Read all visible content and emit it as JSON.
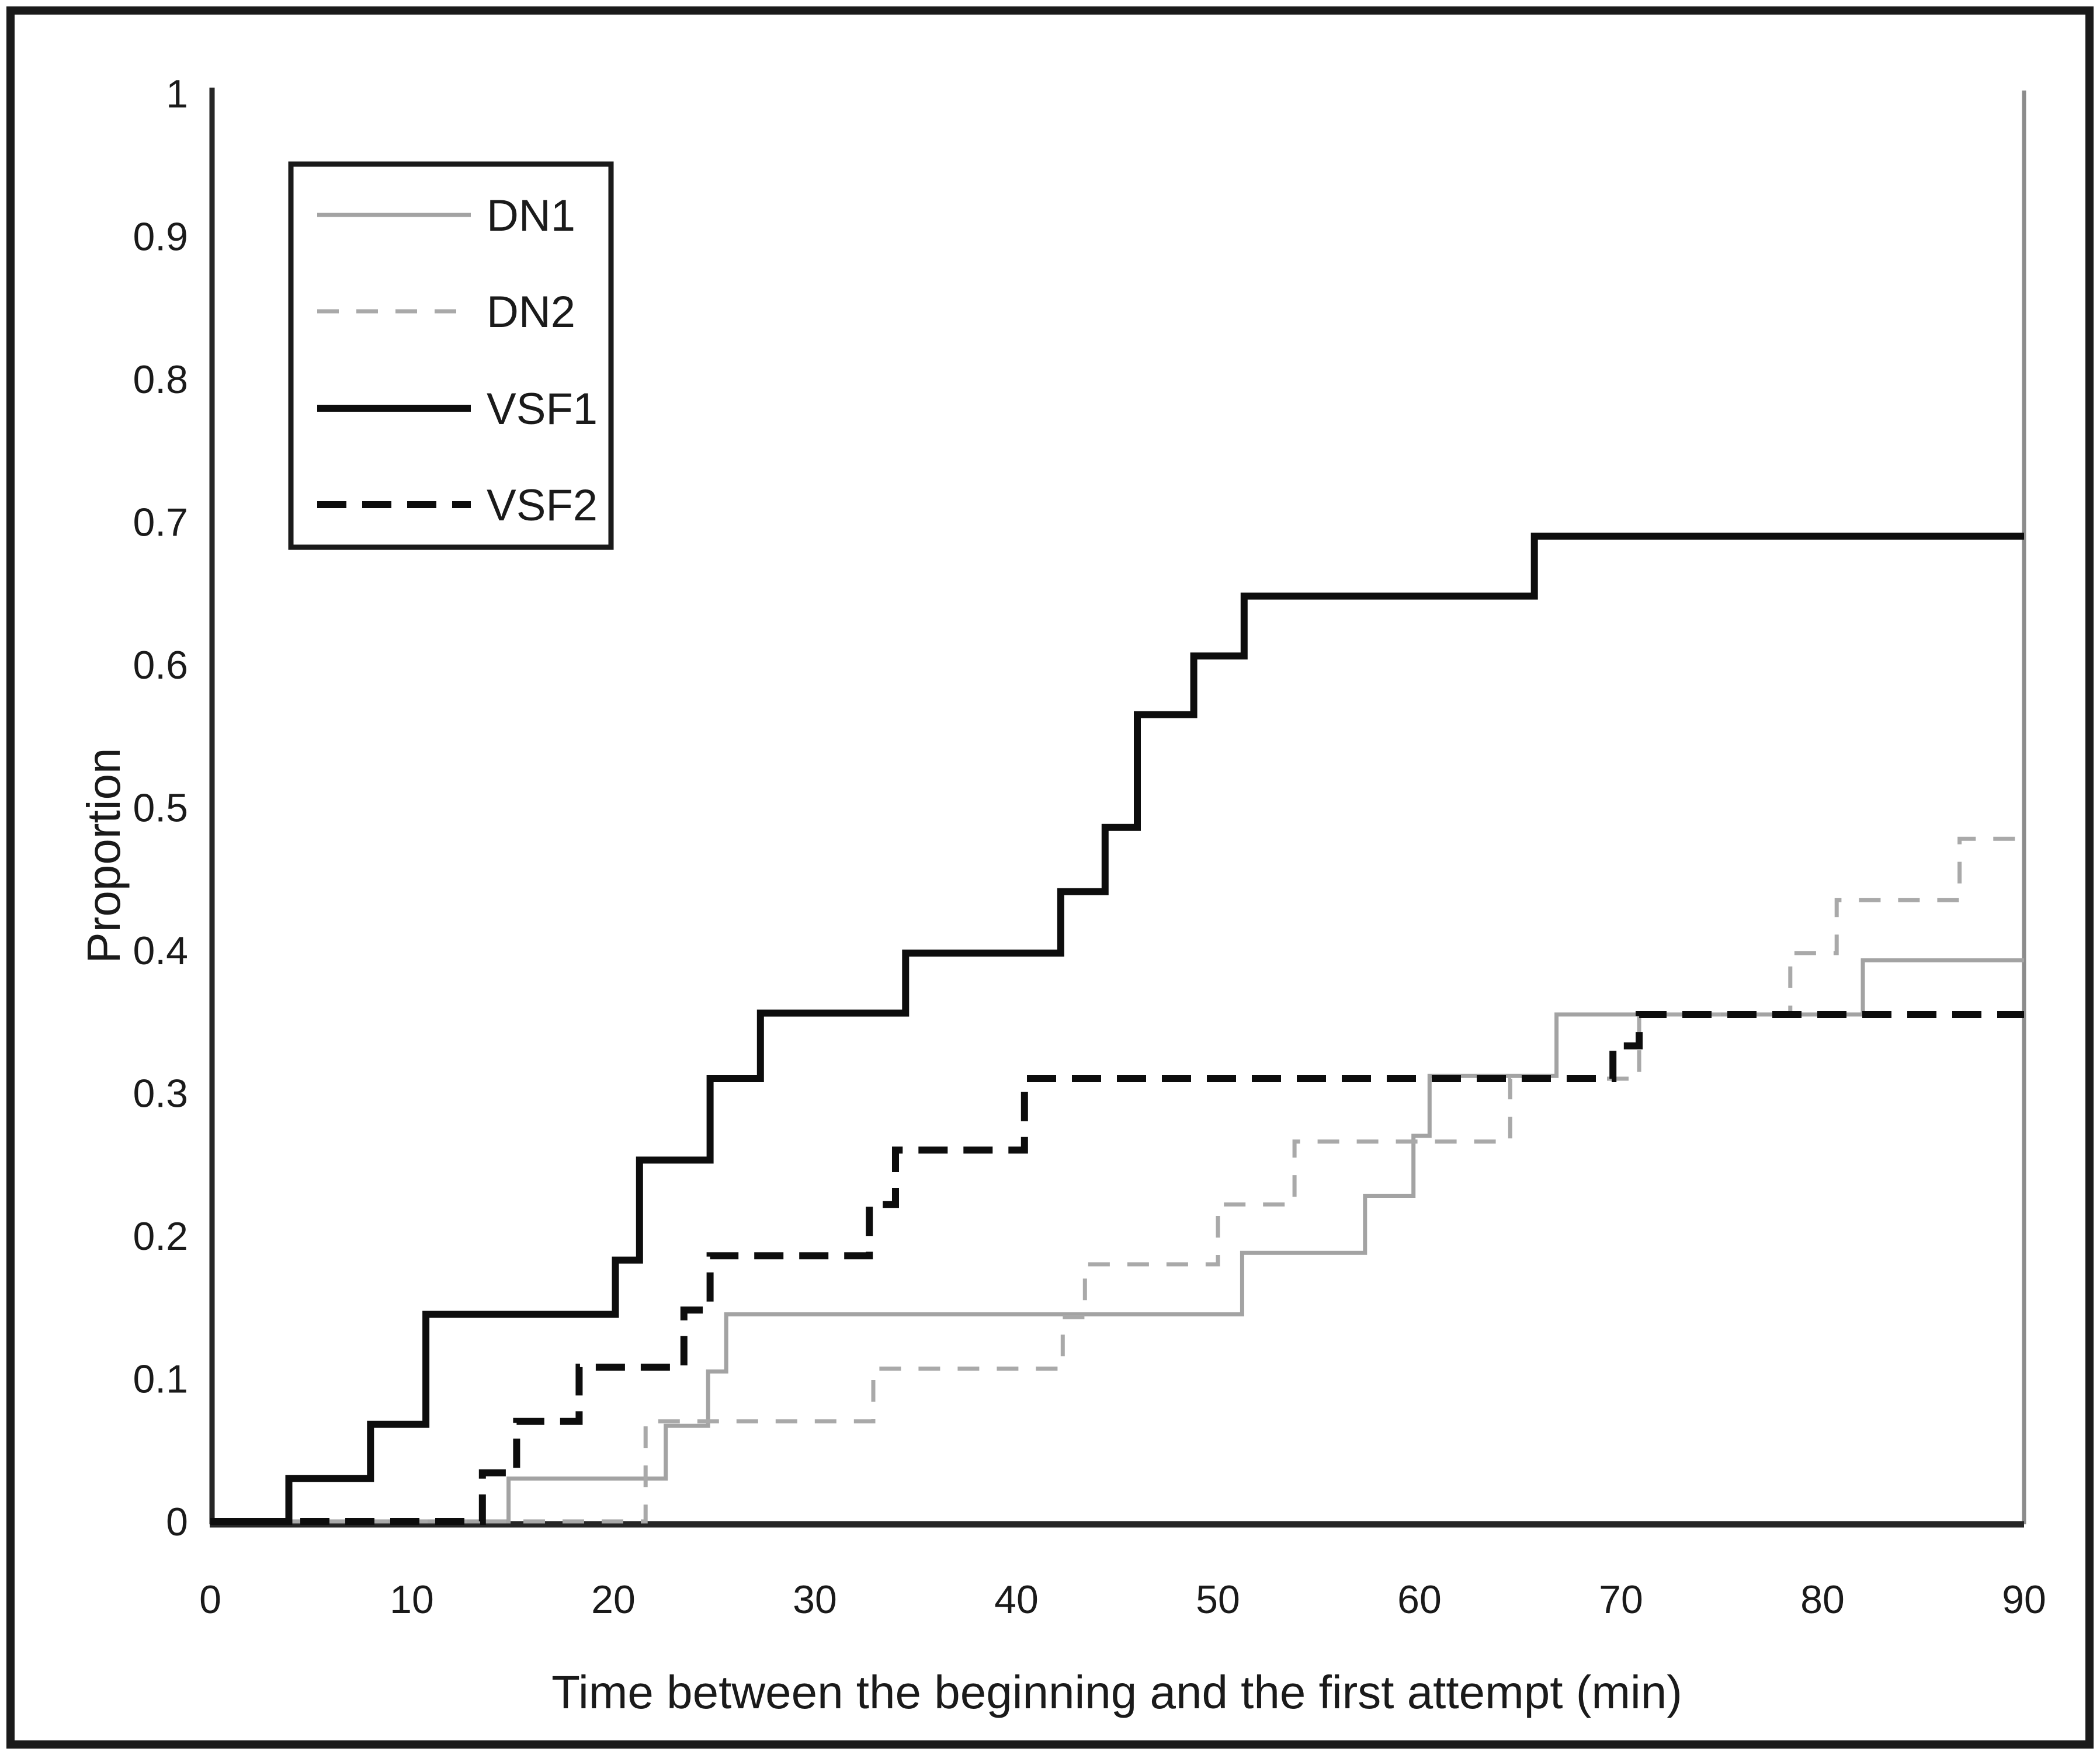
{
  "figure": {
    "background_color": "#ffffff",
    "frame_color": "#1a1a1a",
    "axis_color": "#262626",
    "right_border_color": "#8c8c8c",
    "text_color": "#1a1a1a"
  },
  "axes": {
    "x": {
      "title": "Time between the beginning and the first attempt (min)",
      "tick_labels": [
        "0",
        "10",
        "20",
        "30",
        "40",
        "50",
        "60",
        "70",
        "80",
        "90"
      ],
      "tick_values": [
        0,
        10,
        20,
        30,
        40,
        50,
        60,
        70,
        80,
        90
      ],
      "range": [
        0,
        90
      ]
    },
    "y": {
      "title": "Proportion",
      "tick_labels": [
        "1",
        "0.9",
        "0.8",
        "0.7",
        "0.6",
        "0.5",
        "0.4",
        "0.3",
        "0.2",
        "0.1",
        "0"
      ],
      "tick_values": [
        1,
        0.9,
        0.8,
        0.7,
        0.6,
        0.5,
        0.4,
        0.3,
        0.2,
        0.1,
        0
      ],
      "range": [
        0,
        1
      ]
    }
  },
  "legend": {
    "position": "upper-left",
    "border_color": "#1a1a1a",
    "entries": [
      "DN1",
      "DN2",
      "VSF1",
      "VSF2"
    ]
  },
  "chart_data": {
    "type": "line",
    "subtype": "step",
    "title": "",
    "xlabel": "Time between the beginning and the first attempt (min)",
    "ylabel": "Proportion",
    "xlim": [
      0,
      90
    ],
    "ylim": [
      0,
      1
    ],
    "grid": false,
    "legend_position": "upper-left",
    "series": [
      {
        "name": "DN1",
        "color": "#a3a3a3",
        "style": "solid",
        "weight": "thin",
        "points": [
          [
            0,
            0
          ],
          [
            14.8,
            0
          ],
          [
            14.8,
            0.03
          ],
          [
            22.6,
            0.03
          ],
          [
            22.6,
            0.067
          ],
          [
            24.7,
            0.067
          ],
          [
            24.7,
            0.105
          ],
          [
            25.6,
            0.105
          ],
          [
            25.6,
            0.145
          ],
          [
            51.2,
            0.145
          ],
          [
            51.2,
            0.188
          ],
          [
            57.3,
            0.188
          ],
          [
            57.3,
            0.228
          ],
          [
            59.7,
            0.228
          ],
          [
            59.7,
            0.27
          ],
          [
            60.5,
            0.27
          ],
          [
            60.5,
            0.312
          ],
          [
            66.8,
            0.312
          ],
          [
            66.8,
            0.355
          ],
          [
            82,
            0.355
          ],
          [
            82,
            0.393
          ],
          [
            90,
            0.393
          ]
        ]
      },
      {
        "name": "DN2",
        "color": "#a9a9a9",
        "style": "dashed",
        "weight": "thin",
        "points": [
          [
            0,
            0
          ],
          [
            21.6,
            0
          ],
          [
            21.6,
            0.07
          ],
          [
            32.9,
            0.07
          ],
          [
            32.9,
            0.107
          ],
          [
            42.3,
            0.107
          ],
          [
            42.3,
            0.143
          ],
          [
            43.4,
            0.143
          ],
          [
            43.4,
            0.18
          ],
          [
            50,
            0.18
          ],
          [
            50,
            0.222
          ],
          [
            53.8,
            0.222
          ],
          [
            53.8,
            0.266
          ],
          [
            64.5,
            0.266
          ],
          [
            64.5,
            0.31
          ],
          [
            70.9,
            0.31
          ],
          [
            70.9,
            0.355
          ],
          [
            78.4,
            0.355
          ],
          [
            78.4,
            0.398
          ],
          [
            80.7,
            0.398
          ],
          [
            80.7,
            0.435
          ],
          [
            86.8,
            0.435
          ],
          [
            86.8,
            0.478
          ],
          [
            90,
            0.478
          ]
        ]
      },
      {
        "name": "VSF1",
        "color": "#0d0d0d",
        "style": "solid",
        "weight": "thick",
        "points": [
          [
            0,
            0
          ],
          [
            3.9,
            0
          ],
          [
            3.9,
            0.03
          ],
          [
            7.95,
            0.03
          ],
          [
            7.95,
            0.068
          ],
          [
            10.7,
            0.068
          ],
          [
            10.7,
            0.145
          ],
          [
            20.1,
            0.145
          ],
          [
            20.1,
            0.183
          ],
          [
            21.3,
            0.183
          ],
          [
            21.3,
            0.253
          ],
          [
            24.8,
            0.253
          ],
          [
            24.8,
            0.31
          ],
          [
            27.3,
            0.31
          ],
          [
            27.3,
            0.356
          ],
          [
            34.5,
            0.356
          ],
          [
            34.5,
            0.398
          ],
          [
            42.2,
            0.398
          ],
          [
            42.2,
            0.441
          ],
          [
            44.4,
            0.441
          ],
          [
            44.4,
            0.486
          ],
          [
            46,
            0.486
          ],
          [
            46,
            0.565
          ],
          [
            48.8,
            0.565
          ],
          [
            48.8,
            0.606
          ],
          [
            51.3,
            0.606
          ],
          [
            51.3,
            0.648
          ],
          [
            65.7,
            0.648
          ],
          [
            65.7,
            0.69
          ],
          [
            90,
            0.69
          ]
        ]
      },
      {
        "name": "VSF2",
        "color": "#0d0d0d",
        "style": "dashed",
        "weight": "thick",
        "points": [
          [
            0,
            0
          ],
          [
            13.5,
            0
          ],
          [
            13.5,
            0.034
          ],
          [
            15.2,
            0.034
          ],
          [
            15.2,
            0.07
          ],
          [
            18.3,
            0.07
          ],
          [
            18.3,
            0.108
          ],
          [
            23.5,
            0.108
          ],
          [
            23.5,
            0.148
          ],
          [
            24.8,
            0.148
          ],
          [
            24.8,
            0.186
          ],
          [
            32.7,
            0.186
          ],
          [
            32.7,
            0.222
          ],
          [
            34,
            0.222
          ],
          [
            34,
            0.26
          ],
          [
            40.4,
            0.26
          ],
          [
            40.4,
            0.31
          ],
          [
            69.6,
            0.31
          ],
          [
            69.6,
            0.333
          ],
          [
            70.9,
            0.333
          ],
          [
            70.9,
            0.355
          ],
          [
            90,
            0.355
          ]
        ]
      }
    ]
  }
}
